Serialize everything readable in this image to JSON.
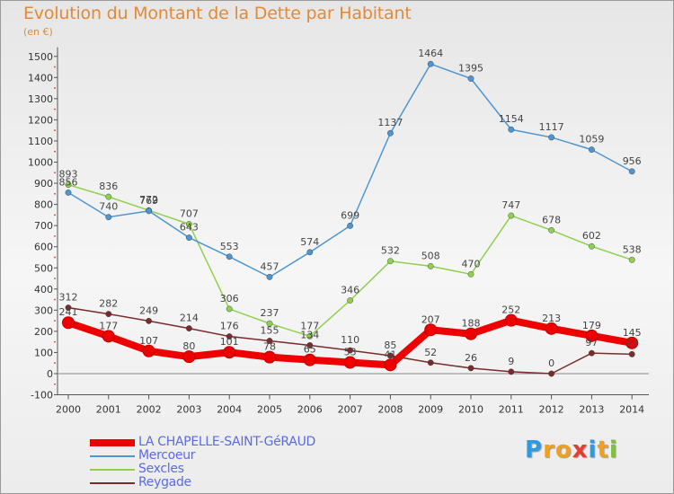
{
  "title": "Evolution du Montant de la Dette par Habitant",
  "unit_label": "(en €)",
  "logo": {
    "letters": [
      "P",
      "r",
      "o",
      "x",
      "i",
      "t",
      "i"
    ],
    "colors": [
      "#2e9be0",
      "#f0a020",
      "#f0a020",
      "#e04030",
      "#2e9be0",
      "#f0a020",
      "#80c040"
    ]
  },
  "chart_data": {
    "type": "line",
    "categories": [
      "2000",
      "2001",
      "2002",
      "2003",
      "2004",
      "2005",
      "2006",
      "2007",
      "2008",
      "2009",
      "2010",
      "2011",
      "2012",
      "2013",
      "2014"
    ],
    "yticks": [
      "-100",
      "0",
      "100",
      "200",
      "300",
      "400",
      "500",
      "600",
      "700",
      "800",
      "900",
      "1000",
      "1100",
      "1200",
      "1300",
      "1400",
      "1500"
    ],
    "ylim": [
      -100,
      1500
    ],
    "grid": false,
    "legend_position": "bottom-left",
    "series": [
      {
        "name": "LA CHAPELLE-SAINT-GéRAUD",
        "color": "#ee0000",
        "values": [
          241,
          177,
          107,
          80,
          101,
          78,
          65,
          53,
          41,
          207,
          188,
          252,
          213,
          179,
          145
        ],
        "labels": [
          "241",
          "177",
          "107",
          "80",
          "101",
          "78",
          "65",
          "53",
          "41",
          "207",
          "188",
          "252",
          "213",
          "179",
          "145"
        ]
      },
      {
        "name": "Mercoeur",
        "color": "#4f95cf",
        "values": [
          856,
          740,
          769,
          643,
          553,
          457,
          574,
          699,
          1137,
          1464,
          1395,
          1154,
          1117,
          1059,
          956
        ],
        "labels": [
          "856",
          "740",
          "769",
          "643",
          "553",
          "457",
          "574",
          "699",
          "1137",
          "1464",
          "1395",
          "1154",
          "1117",
          "1059",
          "956"
        ]
      },
      {
        "name": "Sexcles",
        "color": "#8fd050",
        "values": [
          893,
          836,
          772,
          707,
          306,
          237,
          177,
          346,
          532,
          508,
          470,
          747,
          678,
          602,
          538
        ],
        "labels": [
          "893",
          "836",
          "772",
          "707",
          "306",
          "237",
          "177",
          "346",
          "532",
          "508",
          "470",
          "747",
          "678",
          "602",
          "538"
        ]
      },
      {
        "name": "Reygade",
        "color": "#7a2c2c",
        "values": [
          312,
          282,
          249,
          214,
          176,
          155,
          134,
          110,
          85,
          52,
          26,
          9,
          0,
          97,
          92
        ],
        "labels": [
          "312",
          "282",
          "249",
          "214",
          "176",
          "155",
          "134",
          "110",
          "85",
          "52",
          "26",
          "9",
          "0",
          "97",
          "92"
        ]
      }
    ]
  }
}
